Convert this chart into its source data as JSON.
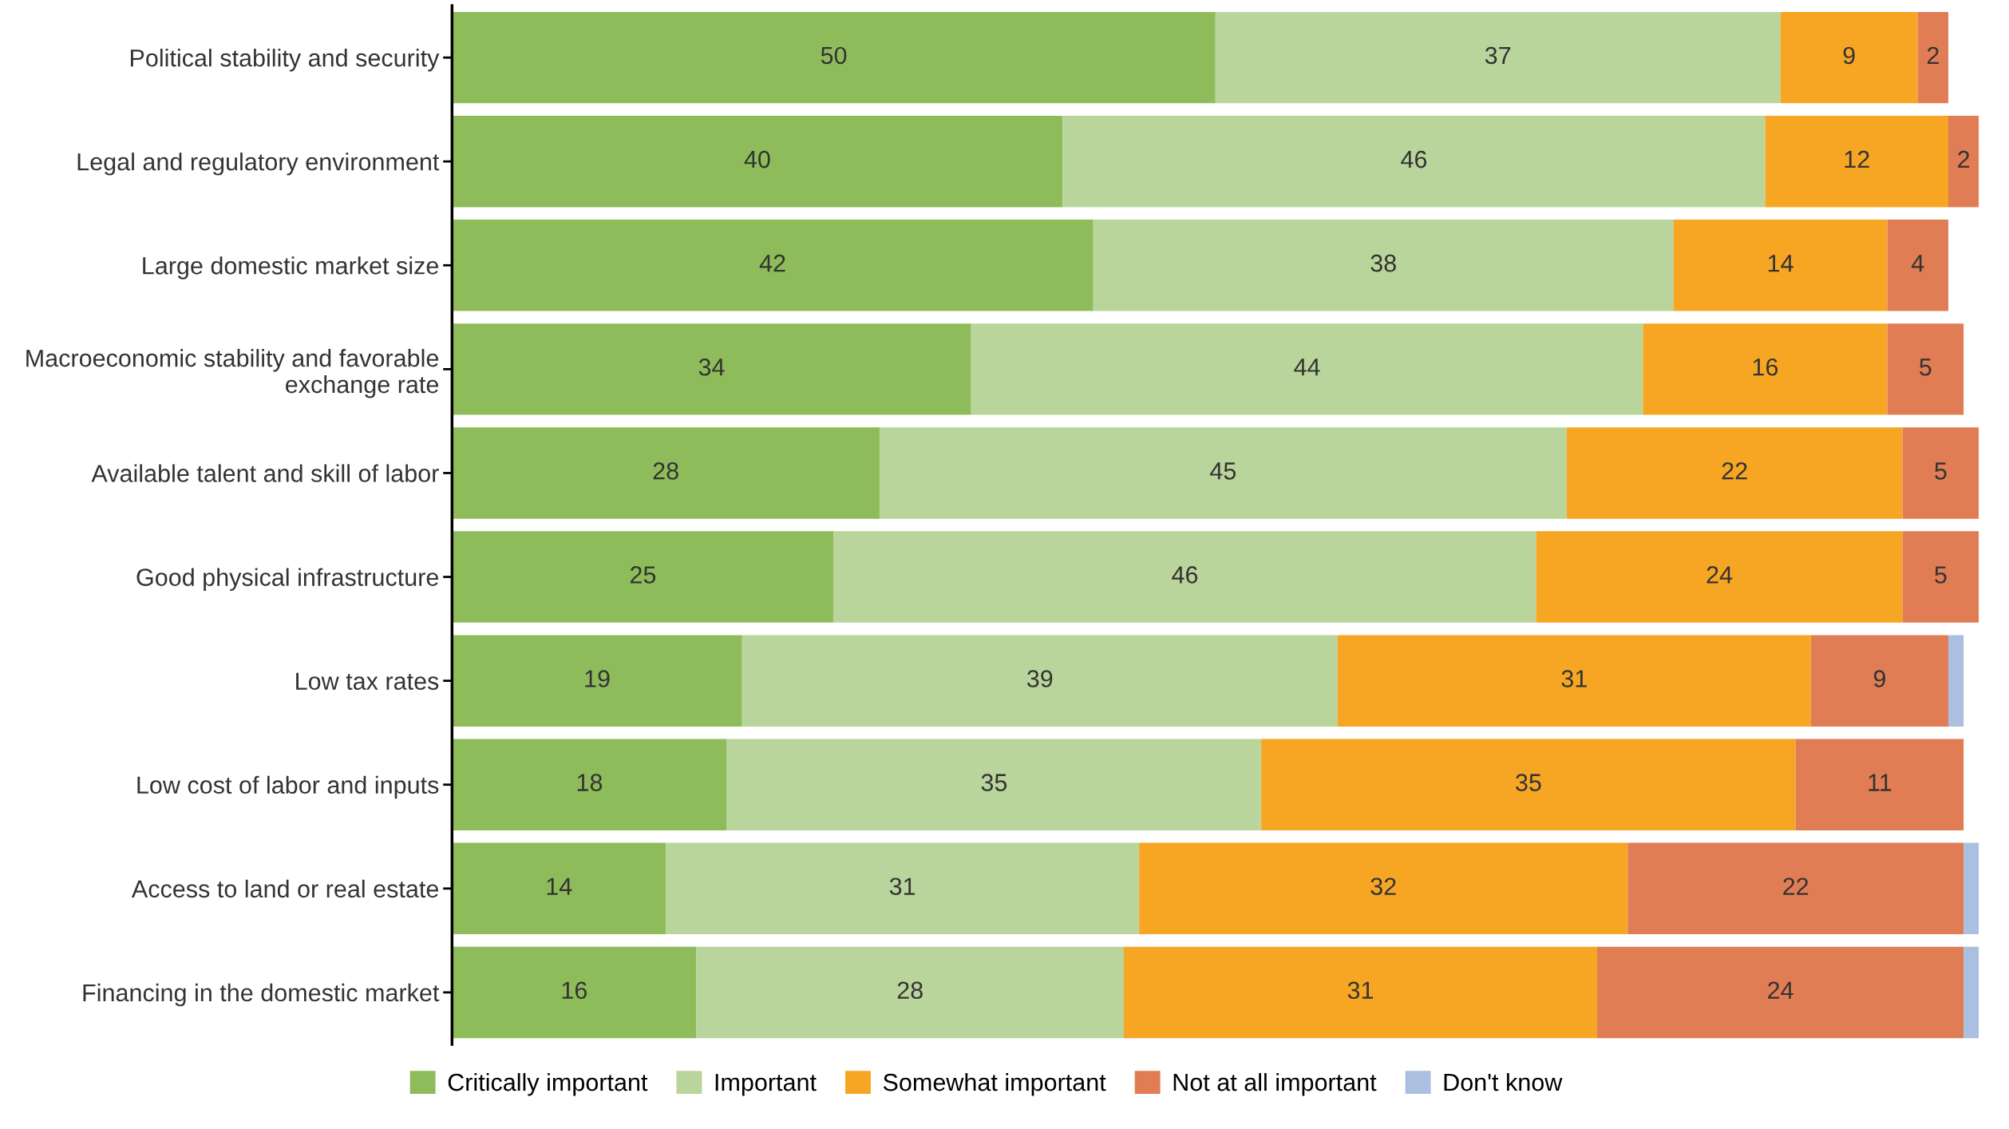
{
  "chart_data": {
    "type": "bar",
    "orientation": "horizontal",
    "stacked": true,
    "categories": [
      "Political stability and security",
      "Legal and regulatory environment",
      "Large domestic market size",
      "Macroeconomic stability and favorable\nexchange rate",
      "Available talent and skill of labor",
      "Good physical infrastructure",
      "Low tax rates",
      "Low cost of labor and inputs",
      "Access to land or real estate",
      "Financing in the domestic market"
    ],
    "series": [
      {
        "name": "Critically important",
        "color": "#8fbc5a",
        "values": [
          50,
          40,
          42,
          34,
          28,
          25,
          19,
          18,
          14,
          16
        ],
        "value_labels": [
          "50",
          "40",
          "42",
          "34",
          "28",
          "25",
          "19",
          "18",
          "14",
          "16"
        ]
      },
      {
        "name": "Important",
        "color": "#b9d59b",
        "values": [
          37,
          46,
          38,
          44,
          45,
          46,
          39,
          35,
          31,
          28
        ],
        "value_labels": [
          "37",
          "46",
          "38",
          "44",
          "45",
          "46",
          "39",
          "35",
          "31",
          "28"
        ]
      },
      {
        "name": "Somewhat important",
        "color": "#f6a623",
        "values": [
          9,
          12,
          14,
          16,
          22,
          24,
          31,
          35,
          32,
          31
        ],
        "value_labels": [
          "9",
          "12",
          "14",
          "16",
          "22",
          "24",
          "31",
          "35",
          "32",
          "31"
        ]
      },
      {
        "name": "Not at all important",
        "color": "#e07d55",
        "values": [
          2,
          2,
          4,
          5,
          5,
          5,
          9,
          11,
          22,
          24
        ],
        "value_labels": [
          "2",
          "2",
          "4",
          "5",
          "5",
          "5",
          "9",
          "11",
          "22",
          "24"
        ]
      },
      {
        "name": "Don't know",
        "color": "#abbfe0",
        "values": [
          null,
          null,
          null,
          null,
          null,
          null,
          1,
          null,
          1,
          1
        ],
        "value_labels": [
          null,
          null,
          null,
          null,
          null,
          null,
          null,
          null,
          null,
          null
        ]
      }
    ],
    "xlim": [
      0,
      100
    ],
    "tick_labels": "y",
    "legend": "bottom",
    "grid": false
  }
}
